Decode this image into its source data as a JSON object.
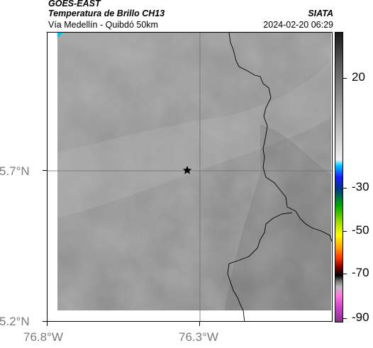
{
  "header": {
    "satellite": "GOES-EAST",
    "product": "Temperatura de Brillo CH13",
    "region": "Vía Medellín - Quibdó 50km",
    "organization": "SIATA",
    "datetime": "2024-02-20 06:29"
  },
  "map": {
    "lat_labels": [
      "5.7°N",
      "5.2°N"
    ],
    "lon_labels": [
      "76.8°W",
      "76.3°W"
    ],
    "marker": "star-marker",
    "colors": {
      "base_gray": "#8c8c8c",
      "border_line": "#000000",
      "grid": "#6e6e6e",
      "marker": "#000000"
    }
  },
  "colorbar": {
    "labels": [
      "20",
      "-30",
      "-50",
      "-70",
      "-90"
    ],
    "stops": [
      "#1a1a1a",
      "#555555",
      "#9a9a9a",
      "#f0f0f0",
      "#00c8ff",
      "#1a1aff",
      "#003388",
      "#00aa00",
      "#aadd00",
      "#ffff00",
      "#ffaa00",
      "#ff3300",
      "#880000",
      "#000000",
      "#777777",
      "#bbbbbb",
      "#ff77dd",
      "#cc44cc",
      "#883388"
    ]
  }
}
